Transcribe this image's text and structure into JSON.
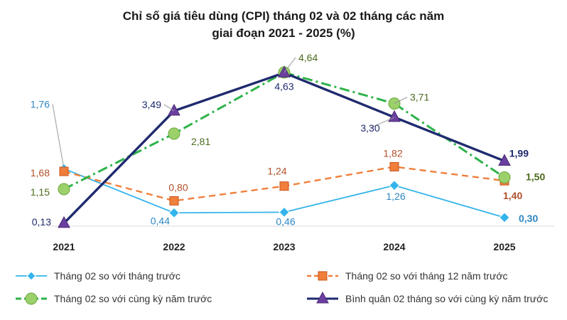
{
  "chart_data": {
    "type": "line",
    "title_line1": "Chỉ số giá tiêu dùng (CPI) tháng 02 và 02 tháng các năm",
    "title_line2": "giai đoạn 2021 - 2025 (%)",
    "categories": [
      "2021",
      "2022",
      "2023",
      "2024",
      "2025"
    ],
    "ylim": [
      0,
      4.8
    ],
    "grid": false,
    "legend_position": "bottom",
    "series": [
      {
        "name": "Tháng 02 so với tháng trước",
        "values": [
          1.76,
          0.44,
          0.46,
          1.26,
          0.3
        ],
        "labels": [
          "1,76",
          "0,44",
          "0,46",
          "1,26",
          "0,30"
        ],
        "color": "#33b4ea",
        "marker": "diamond",
        "dash": "solid"
      },
      {
        "name": "Tháng 02 so với tháng 12 năm trước",
        "values": [
          1.68,
          0.8,
          1.24,
          1.82,
          1.4
        ],
        "labels": [
          "1,68",
          "0,80",
          "1,24",
          "1,82",
          "1,40"
        ],
        "color": "#f07f3c",
        "marker": "square",
        "dash": "dash"
      },
      {
        "name": "Tháng 02 so với cùng kỳ năm trước",
        "values": [
          1.15,
          2.81,
          4.64,
          3.71,
          1.5
        ],
        "labels": [
          "1,15",
          "2,81",
          "4,64",
          "3,71",
          "1,50"
        ],
        "color": "#2db34a",
        "marker": "circle",
        "dash": "dashdot"
      },
      {
        "name": "Bình quân 02 tháng so với cùng kỳ năm trước",
        "values": [
          0.13,
          3.49,
          4.63,
          3.3,
          1.99
        ],
        "labels": [
          "0,13",
          "3,49",
          "4,63",
          "3,30",
          "1,99"
        ],
        "color": "#1f2a6e",
        "marker": "triangle",
        "dash": "solid"
      }
    ]
  }
}
